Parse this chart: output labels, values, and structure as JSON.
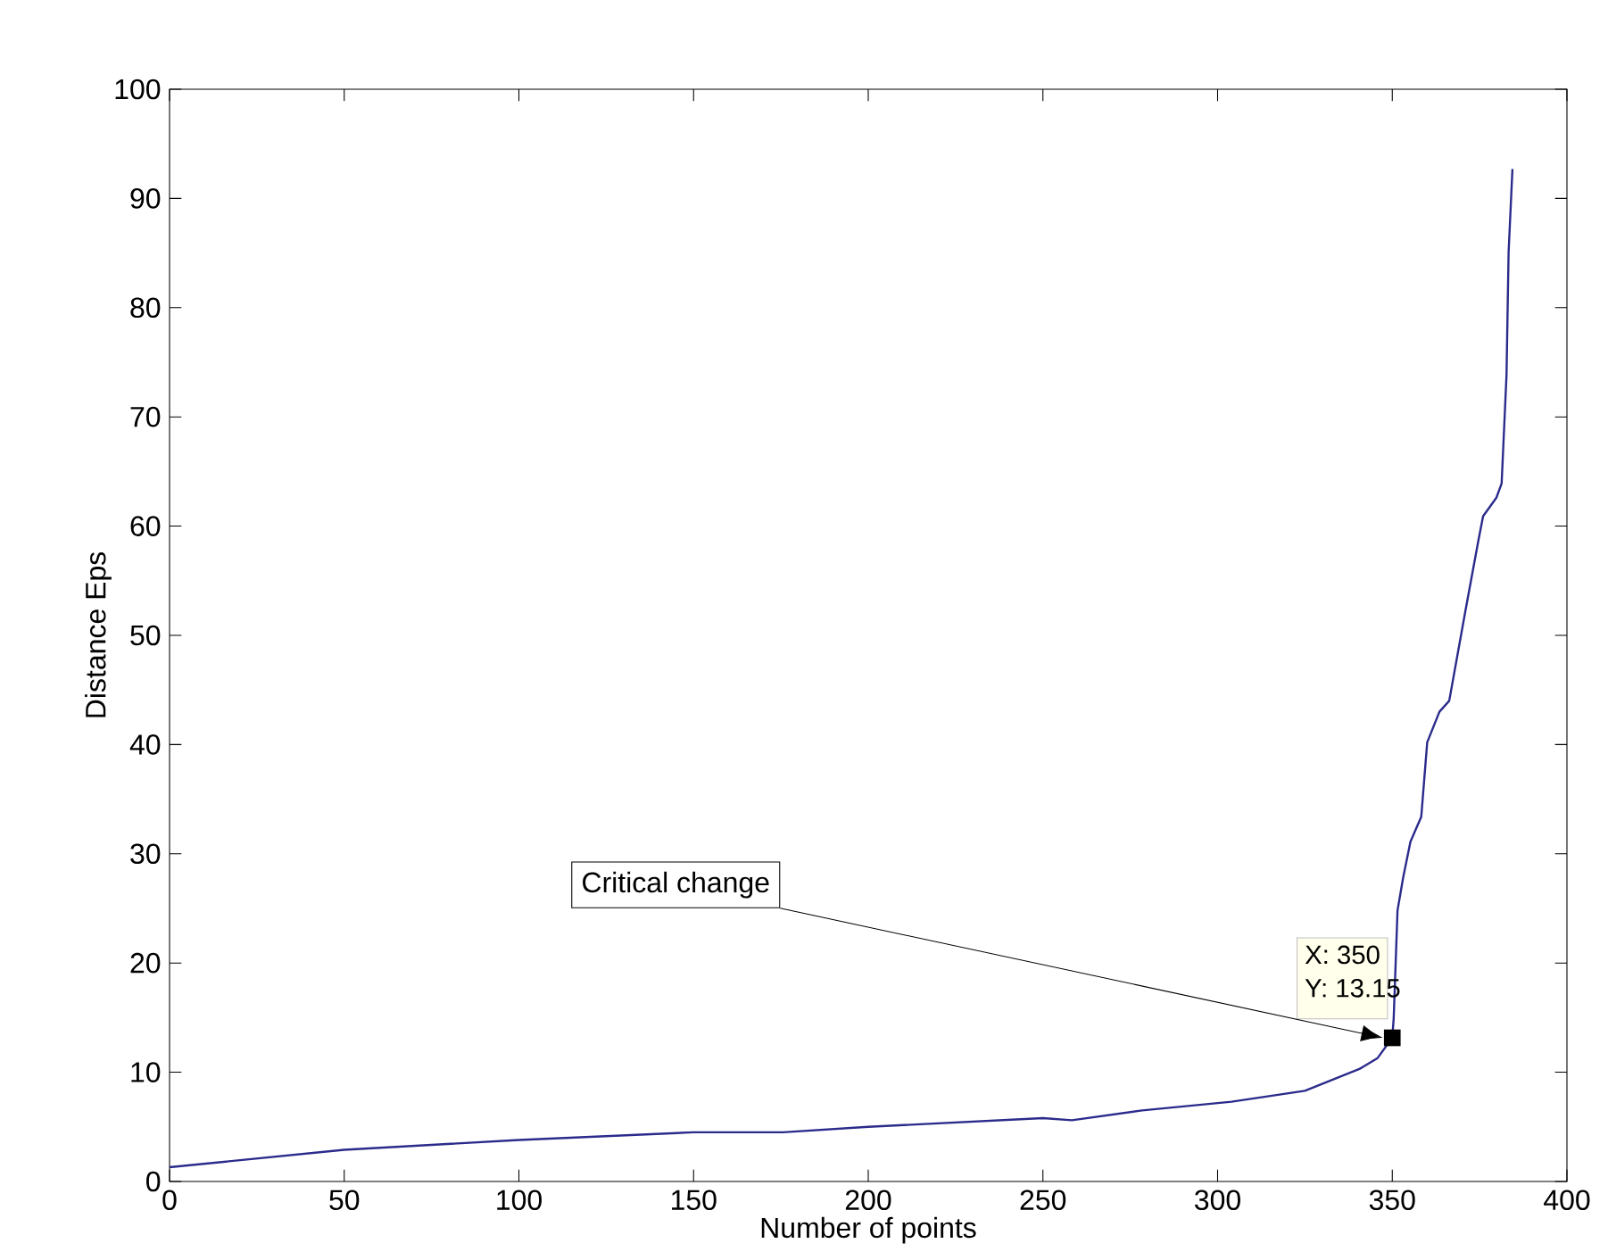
{
  "chart_data": {
    "type": "line",
    "xlabel": "Number of points",
    "ylabel": "Distance Eps",
    "x": [
      0,
      50,
      100,
      150,
      175.6,
      200,
      250,
      258.3,
      278.4,
      304,
      325,
      340.6,
      345.8,
      350,
      350.4,
      351.5,
      353.1,
      355.2,
      358.3,
      360,
      363.5,
      366.3,
      370.8,
      374.6,
      376,
      379.8,
      381.3,
      382.7,
      383.3,
      384.4
    ],
    "series": [
      {
        "color": "#2b2b8c",
        "values": [
          1.3,
          2.9,
          3.8,
          4.5,
          4.5,
          5.0,
          5.8,
          5.6,
          6.5,
          7.3,
          8.3,
          10.3,
          11.3,
          13.15,
          14.9,
          24.8,
          27.8,
          31.1,
          33.4,
          40.2,
          43,
          44,
          52,
          58.6,
          60.9,
          62.6,
          63.9,
          73.8,
          85.1,
          92.7
        ]
      }
    ],
    "xlim": [
      0,
      400
    ],
    "ylim": [
      0,
      100
    ],
    "xticks": [
      0,
      50,
      100,
      150,
      200,
      250,
      300,
      350,
      400
    ],
    "yticks": [
      0,
      10,
      20,
      30,
      40,
      50,
      60,
      70,
      80,
      90,
      100
    ],
    "marker": "none",
    "line_style": "solid",
    "annotations": [
      "Critical change",
      {
        "text": "X: 350",
        "x": 350,
        "y": 13.15
      },
      {
        "text": "Y: 13.15",
        "x": 350,
        "y": 13.15
      }
    ]
  }
}
